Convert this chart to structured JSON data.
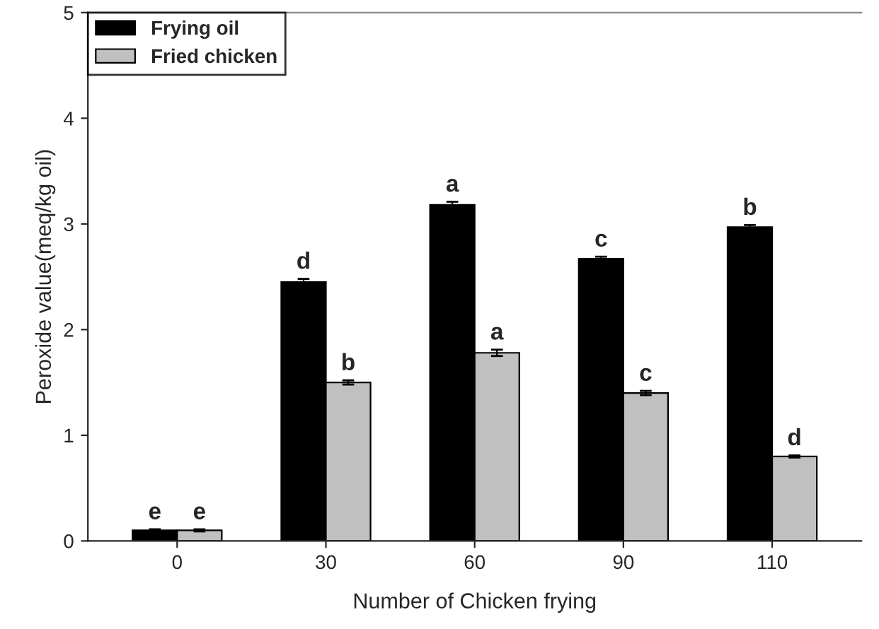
{
  "chart_data": {
    "type": "bar",
    "xlabel": "Number of Chicken frying",
    "ylabel": "Peroxide value(meq/kg oil)",
    "categories": [
      "0",
      "30",
      "60",
      "90",
      "110"
    ],
    "series": [
      {
        "name": "Frying oil",
        "color": "#000000",
        "values": [
          0.1,
          2.45,
          3.18,
          2.67,
          2.97
        ],
        "errors": [
          0.01,
          0.03,
          0.03,
          0.02,
          0.02
        ],
        "value_labels": [
          "e",
          "d",
          "a",
          "c",
          "b"
        ]
      },
      {
        "name": "Fried chicken",
        "color": "#c0c0c0",
        "values": [
          0.1,
          1.5,
          1.78,
          1.4,
          0.8
        ],
        "errors": [
          0.01,
          0.02,
          0.03,
          0.02,
          0.01
        ],
        "value_labels": [
          "e",
          "b",
          "a",
          "c",
          "d"
        ]
      }
    ],
    "ylim": [
      0,
      5
    ],
    "yticks": [
      0,
      1,
      2,
      3,
      4,
      5
    ],
    "grid": false,
    "legend": "top left"
  }
}
